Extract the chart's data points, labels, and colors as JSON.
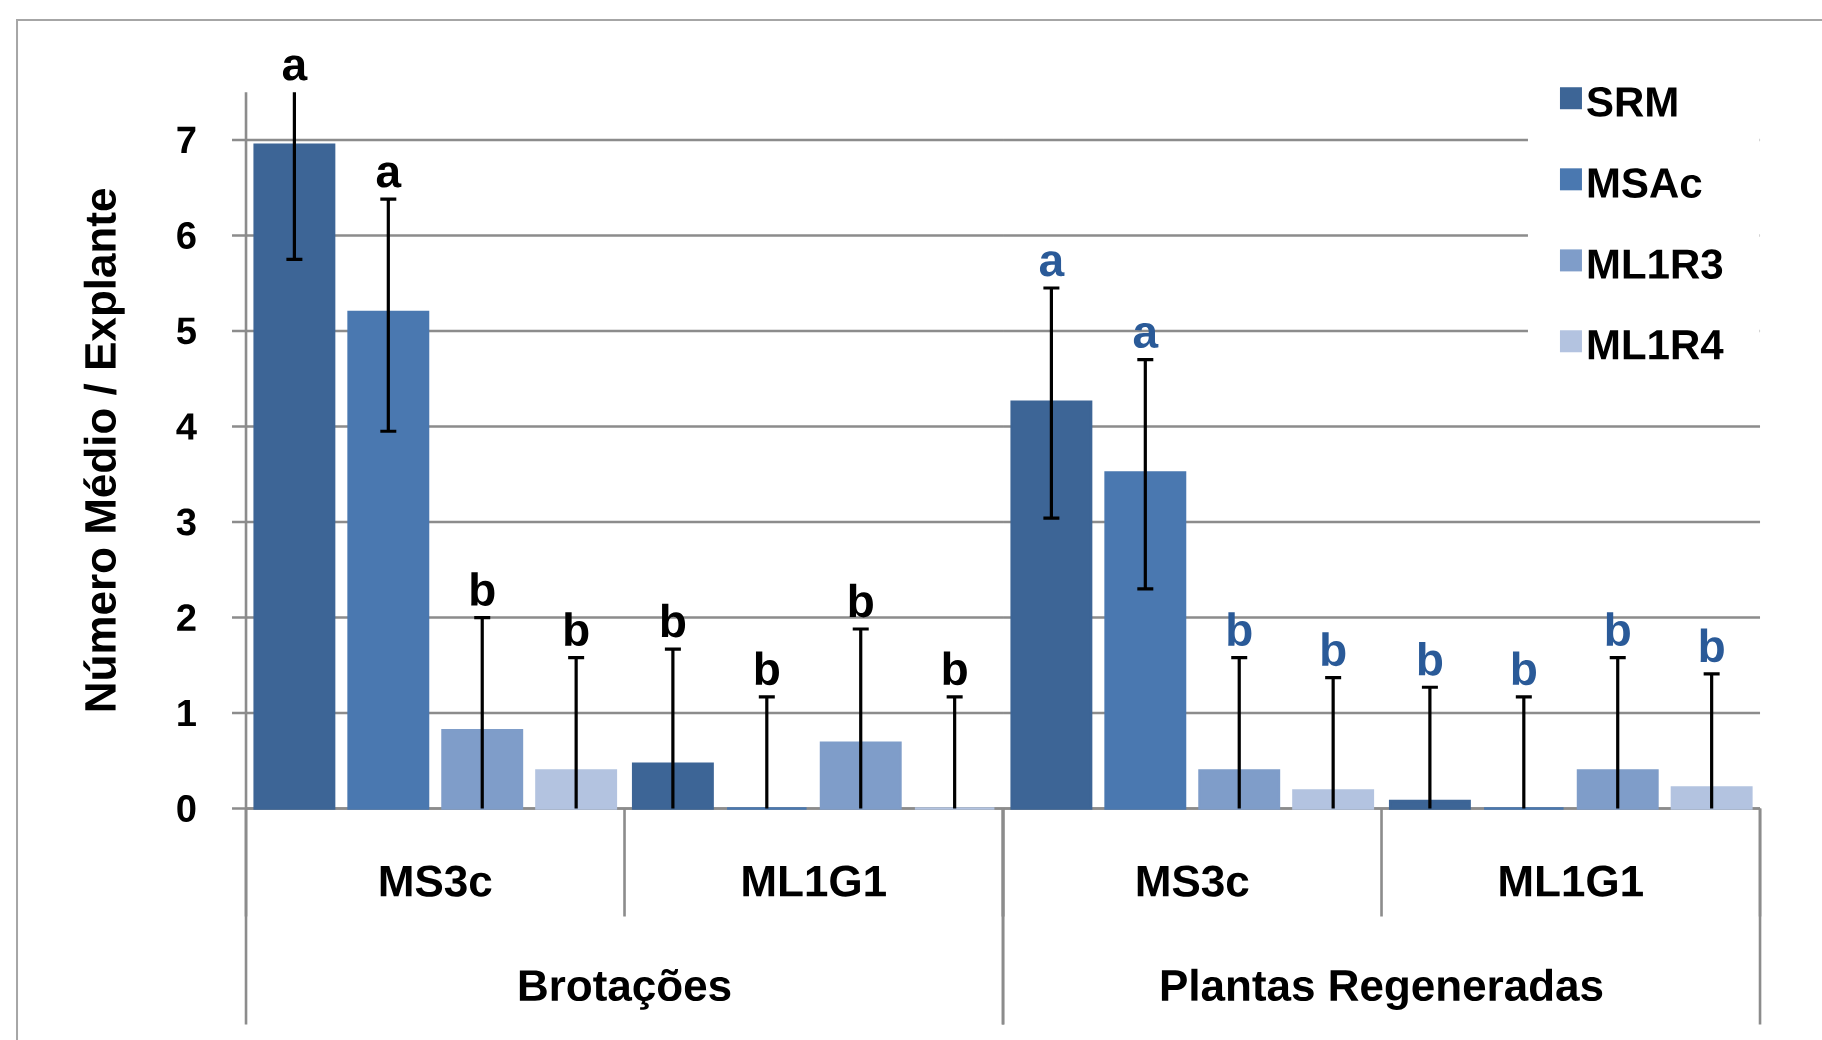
{
  "chart_data": [
    {
      "type": "bar",
      "xlabel": "Brotações",
      "ylabel": "Número Médio / Explante",
      "categories": [
        "MS3c",
        "ML1G1"
      ],
      "series": [
        {
          "color": "#3d6596",
          "values": [
            6.95,
            0.47
          ],
          "errors": [
            [
              5.75,
              7.5
            ],
            [
              0,
              1.67
            ]
          ],
          "value_labels": [
            "a",
            "b"
          ]
        },
        {
          "color": "#4a78b0",
          "values": [
            5.2,
            0
          ],
          "errors": [
            [
              3.95,
              6.38
            ],
            [
              0,
              1.17
            ]
          ],
          "value_labels": [
            "a",
            "b"
          ]
        },
        {
          "color": "#7f9dc9",
          "values": [
            0.82,
            0.69
          ],
          "errors": [
            [
              0,
              2.0
            ],
            [
              0,
              1.88
            ]
          ],
          "value_labels": [
            "b",
            "b"
          ]
        },
        {
          "color": "#b3c3e0",
          "values": [
            0.4,
            0
          ],
          "errors": [
            [
              0,
              1.58
            ],
            [
              0,
              1.17
            ]
          ],
          "value_labels": [
            "b",
            "b"
          ]
        }
      ],
      "ylim": [
        0,
        7.5
      ],
      "yticks": [
        0,
        1,
        2,
        3,
        4,
        5,
        6,
        7
      ],
      "grid": "y"
    },
    {
      "type": "bar",
      "xlabel": "Plantas Regeneradas",
      "categories": [
        "MS3c",
        "ML1G1"
      ],
      "series": [
        {
          "name": "SRM",
          "color": "#3d6596",
          "values": [
            4.26,
            0.08
          ],
          "errors": [
            [
              3.04,
              5.45
            ],
            [
              0,
              1.27
            ]
          ],
          "value_labels": [
            "a",
            "b"
          ]
        },
        {
          "name": "MSAc",
          "color": "#4a78b0",
          "values": [
            3.52,
            0
          ],
          "errors": [
            [
              2.3,
              4.7
            ],
            [
              0,
              1.17
            ]
          ],
          "value_labels": [
            "a",
            "b"
          ]
        },
        {
          "name": "ML1R3",
          "color": "#7f9dc9",
          "values": [
            0.4,
            0.4
          ],
          "errors": [
            [
              0,
              1.58
            ],
            [
              0,
              1.58
            ]
          ],
          "value_labels": [
            "b",
            "b"
          ]
        },
        {
          "name": "ML1R4",
          "color": "#b3c3e0",
          "values": [
            0.19,
            0.22
          ],
          "errors": [
            [
              0,
              1.37
            ],
            [
              0,
              1.41
            ]
          ],
          "value_labels": [
            "b",
            "b"
          ]
        }
      ],
      "ylim": [
        0,
        7.5
      ],
      "yticks": [
        0,
        1,
        2,
        3,
        4,
        5,
        6,
        7
      ],
      "grid": "y",
      "legend": "top right",
      "tick_labels": "x"
    }
  ]
}
